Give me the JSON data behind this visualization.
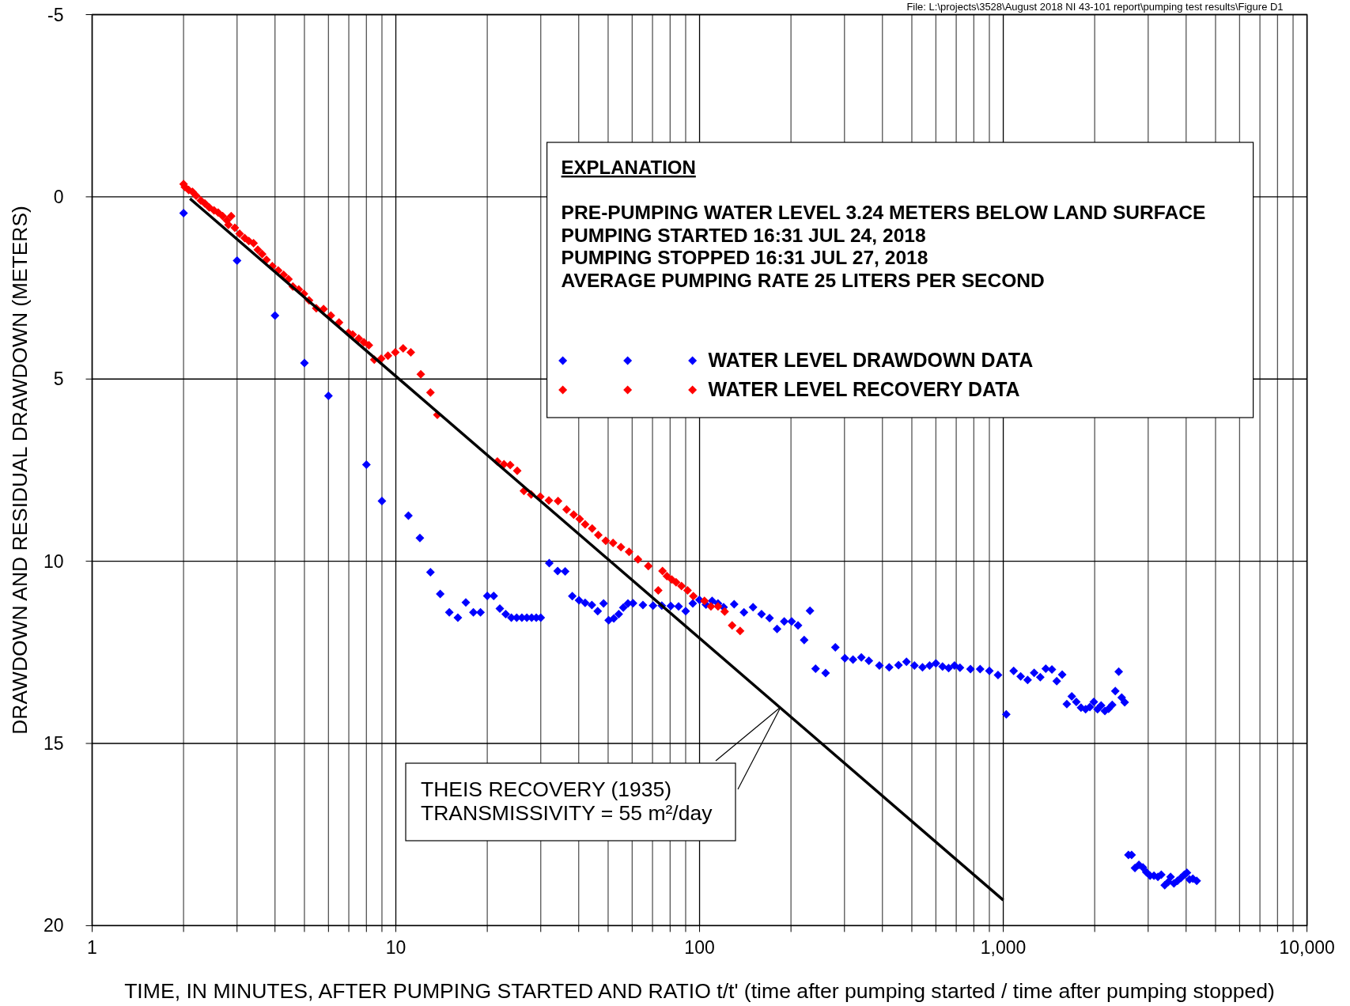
{
  "chart_data": {
    "type": "scatter",
    "xlabel": "TIME, IN MINUTES, AFTER PUMPING STARTED AND RATIO t/t' (time after pumping started / time after pumping stopped)",
    "ylabel": "DRAWDOWN AND RESIDUAL DRAWDOWN (METERS)",
    "legend_title": "EXPLANATION",
    "annotations": [
      "File: L:\\projects\\3528\\August 2018 NI 43-101 report\\pumping test results\\Figure D1",
      "PRE-PUMPING WATER LEVEL 3.24 METERS BELOW LAND SURFACE",
      "PUMPING STARTED 16:31 JUL 24, 2018",
      "PUMPING STOPPED 16:31 JUL 27, 2018",
      "AVERAGE PUMPING RATE 25 LITERS PER SECOND",
      {
        "text": "THEIS RECOVERY (1935)\nTRANSMISSIVITY = 55 m²/day",
        "x": 185,
        "y": 14
      }
    ],
    "log": "x",
    "xlim": [
      1,
      10000
    ],
    "xticks": [
      1,
      {
        "value": 2,
        "label": null
      },
      {
        "value": 3,
        "label": null
      },
      {
        "value": 4,
        "label": null
      },
      {
        "value": 5,
        "label": null
      },
      {
        "value": 6,
        "label": null
      },
      {
        "value": 7,
        "label": null
      },
      {
        "value": 8,
        "label": null
      },
      {
        "value": 9,
        "label": null
      },
      10,
      {
        "value": 20,
        "label": null
      },
      {
        "value": 30,
        "label": null
      },
      {
        "value": 40,
        "label": null
      },
      {
        "value": 50,
        "label": null
      },
      {
        "value": 60,
        "label": null
      },
      {
        "value": 70,
        "label": null
      },
      {
        "value": 80,
        "label": null
      },
      {
        "value": 90,
        "label": null
      },
      100,
      {
        "value": 200,
        "label": null
      },
      {
        "value": 300,
        "label": null
      },
      {
        "value": 400,
        "label": null
      },
      {
        "value": 500,
        "label": null
      },
      {
        "value": 600,
        "label": null
      },
      {
        "value": 700,
        "label": null
      },
      {
        "value": 800,
        "label": null
      },
      {
        "value": 900,
        "label": null
      },
      {
        "value": 1000,
        "label": "1,000"
      },
      {
        "value": 2000,
        "label": null
      },
      {
        "value": 3000,
        "label": null
      },
      {
        "value": 4000,
        "label": null
      },
      {
        "value": 5000,
        "label": null
      },
      {
        "value": 6000,
        "label": null
      },
      {
        "value": 7000,
        "label": null
      },
      {
        "value": 8000,
        "label": null
      },
      {
        "value": 9000,
        "label": null
      },
      {
        "value": 10000,
        "label": "10,000"
      }
    ],
    "ylim": [
      20,
      -5
    ],
    "yticks": [
      -5,
      0,
      5,
      10,
      15,
      20
    ],
    "grid": true,
    "legend": "top right",
    "marker": "diamond",
    "series": [
      {
        "name": "WATER LEVEL DRAWDOWN DATA",
        "color": "#0000ff",
        "x": [
          2,
          3,
          4,
          5,
          6,
          8,
          9,
          11,
          12,
          13,
          14,
          15,
          16,
          17,
          18,
          19,
          20,
          21,
          22,
          23,
          24,
          25,
          26,
          27,
          28,
          29,
          30,
          32,
          34.1,
          36.1,
          38.1,
          40.1,
          42,
          44.2,
          46.2,
          48.3,
          50.2,
          52.2,
          54.2,
          56.1,
          58.1,
          60.4,
          65.1,
          70.3,
          75.1,
          80.4,
          85.3,
          90,
          95,
          99.9,
          105,
          110,
          115,
          120,
          130,
          140,
          150,
          160,
          170,
          180,
          190,
          201,
          211,
          221,
          231,
          241,
          260,
          280,
          301,
          320,
          341,
          361,
          391,
          421,
          452,
          480,
          510,
          542,
          572,
          600,
          631,
          661,
          691,
          720,
          780,
          839,
          900,
          961,
          1023,
          1082,
          1141,
          1203,
          1264,
          1324,
          1380,
          1446,
          1500,
          1563,
          1619,
          1681,
          1740,
          1803,
          1867,
          1928,
          1987,
          2043,
          2100,
          2161,
          2222,
          2284,
          2338,
          2400,
          2454,
          2511,
          2583,
          2646,
          2714,
          2796,
          2882,
          2957,
          3043,
          3135,
          3230,
          3314,
          3401,
          3497,
          3555,
          3647,
          3745,
          3848,
          3945,
          4025,
          4105,
          4210,
          4335
        ],
        "values": [
          0.45,
          1.75,
          3.26,
          4.56,
          5.46,
          7.35,
          8.35,
          8.75,
          9.36,
          10.3,
          10.9,
          11.4,
          11.55,
          11.13,
          11.4,
          11.4,
          10.95,
          10.95,
          11.3,
          11.45,
          11.55,
          11.55,
          11.55,
          11.55,
          11.55,
          11.55,
          11.55,
          10.05,
          10.27,
          10.28,
          10.96,
          11.07,
          11.14,
          11.2,
          11.37,
          11.16,
          11.62,
          11.57,
          11.45,
          11.27,
          11.16,
          11.15,
          11.2,
          11.22,
          11.22,
          11.23,
          11.24,
          11.37,
          11.16,
          11.06,
          11.19,
          11.09,
          11.16,
          11.26,
          11.18,
          11.4,
          11.26,
          11.45,
          11.56,
          11.86,
          11.65,
          11.65,
          11.76,
          12.16,
          11.36,
          12.95,
          13.07,
          12.36,
          12.66,
          12.7,
          12.64,
          12.73,
          12.86,
          12.91,
          12.85,
          12.76,
          12.86,
          12.91,
          12.86,
          12.8,
          12.89,
          12.93,
          12.86,
          12.92,
          12.96,
          12.96,
          13.01,
          13.12,
          14.2,
          13.01,
          13.16,
          13.26,
          13.06,
          13.18,
          12.95,
          12.97,
          13.29,
          13.11,
          13.92,
          13.71,
          13.86,
          14.02,
          14.06,
          14.0,
          13.86,
          14.06,
          13.96,
          14.11,
          14.05,
          13.94,
          13.56,
          13.03,
          13.74,
          13.87,
          18.06,
          18.06,
          18.42,
          18.33,
          18.4,
          18.53,
          18.63,
          18.63,
          18.66,
          18.6,
          18.89,
          18.8,
          18.66,
          18.84,
          18.77,
          18.69,
          18.6,
          18.55,
          18.73,
          18.71,
          18.77
        ]
      },
      {
        "name": "WATER LEVEL RECOVERY DATA",
        "color": "#ff0000",
        "x": [
          2.0,
          2.02,
          2.08,
          2.14,
          2.2,
          2.28,
          2.35,
          2.43,
          2.52,
          2.6,
          2.69,
          2.78,
          2.81,
          2.87,
          2.95,
          3.06,
          3.18,
          3.28,
          3.4,
          3.51,
          3.63,
          3.75,
          3.92,
          4.1,
          4.27,
          4.43,
          4.58,
          4.79,
          4.98,
          5.18,
          5.47,
          5.78,
          6.11,
          6.5,
          6.98,
          7.21,
          7.55,
          7.85,
          8.15,
          8.49,
          8.95,
          9.42,
          9.96,
          10.57,
          11.2,
          12.08,
          13,
          13.7,
          21.6,
          22.7,
          23.8,
          25.1,
          26.4,
          27.9,
          29.9,
          31.9,
          34.2,
          36.5,
          38.5,
          40.3,
          42,
          44.3,
          46.4,
          49.1,
          51.9,
          55.1,
          58.6,
          62.7,
          67.8,
          73.1,
          75.5,
          78.1,
          81,
          83.7,
          87.2,
          91.3,
          95.4,
          103.8,
          109,
          115,
          121,
          128,
          136
        ],
        "values": [
          -0.35,
          -0.27,
          -0.19,
          -0.14,
          -0.03,
          0.1,
          0.18,
          0.29,
          0.37,
          0.43,
          0.53,
          0.65,
          0.77,
          0.53,
          0.85,
          1.01,
          1.13,
          1.21,
          1.27,
          1.45,
          1.57,
          1.73,
          1.9,
          2.02,
          2.14,
          2.26,
          2.46,
          2.54,
          2.66,
          2.84,
          3.06,
          3.08,
          3.26,
          3.45,
          3.73,
          3.78,
          3.89,
          3.99,
          4.07,
          4.47,
          4.44,
          4.36,
          4.27,
          4.16,
          4.27,
          4.87,
          5.37,
          5.98,
          7.26,
          7.34,
          7.36,
          7.52,
          8.07,
          8.17,
          8.23,
          8.33,
          8.35,
          8.58,
          8.72,
          8.84,
          8.99,
          9.1,
          9.28,
          9.44,
          9.5,
          9.61,
          9.74,
          9.95,
          10.13,
          10.8,
          10.27,
          10.41,
          10.5,
          10.58,
          10.68,
          10.8,
          10.96,
          11.09,
          11.24,
          11.24,
          11.38,
          11.76,
          11.91
        ]
      },
      {
        "type": "line",
        "color": "#000000",
        "line_style": "solid",
        "marker": "none",
        "x": [
          2.1,
          1000
        ],
        "values": [
          0.05,
          19.3
        ]
      }
    ]
  }
}
